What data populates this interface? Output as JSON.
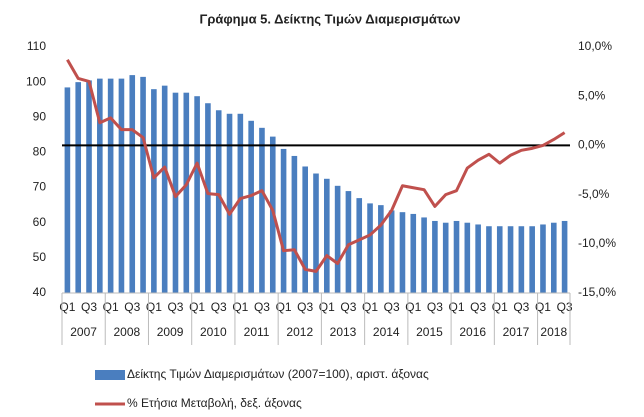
{
  "chart_data": {
    "type": "bar_line",
    "title": "Γράφημα 5. Δείκτης Τιμών Διαμερισμάτων",
    "categories": [
      "Q1",
      null,
      "Q3",
      null,
      "Q1",
      null,
      "Q3",
      null,
      "Q1",
      null,
      "Q3",
      null,
      "Q1",
      null,
      "Q3",
      null,
      "Q1",
      null,
      "Q3",
      null,
      "Q1",
      null,
      "Q3",
      null,
      "Q1",
      null,
      "Q3",
      null,
      "Q1",
      null,
      "Q3",
      null,
      "Q1",
      null,
      "Q3",
      null,
      "Q1",
      null,
      "Q3",
      null,
      "Q1",
      null,
      "Q3",
      null,
      "Q1",
      null,
      "Q3"
    ],
    "years": [
      "2007",
      "2008",
      "2009",
      "2010",
      "2011",
      "2012",
      "2013",
      "2014",
      "2015",
      "2016",
      "2017",
      "2018"
    ],
    "series": [
      {
        "name": "Δείκτης Τιμών Διαμερισμάτων (2007=100), αριστ. άξονας",
        "color": "#4a7ebf",
        "axis": "y",
        "values": [
          98.5,
          100,
          100.5,
          101,
          101,
          101,
          102,
          101.5,
          98,
          99,
          97,
          97,
          96,
          94,
          92,
          91,
          91,
          89,
          87,
          84.5,
          81,
          79,
          76,
          74,
          72.5,
          70.5,
          69,
          67,
          65.5,
          65,
          63.5,
          63,
          62.5,
          61.5,
          60.5,
          60,
          60.5,
          60,
          59.5,
          59,
          59,
          59,
          59,
          59,
          59.5,
          60,
          60.5
        ]
      },
      {
        "name": "% Ετήσια Μεταβολή, δεξ. άξονας",
        "color": "#c0504d",
        "axis": "y2",
        "values": [
          8.7,
          6.8,
          6.5,
          2.3,
          2.8,
          1.6,
          1.6,
          0.8,
          -3.3,
          -2.2,
          -5.2,
          -4.0,
          -1.8,
          -4.9,
          -5.0,
          -7.0,
          -5.4,
          -5.1,
          -4.6,
          -6.6,
          -10.7,
          -10.6,
          -12.6,
          -12.8,
          -11.2,
          -12.0,
          -10.1,
          -9.6,
          -9.1,
          -8.1,
          -6.6,
          -4.1,
          -4.3,
          -4.5,
          -6.2,
          -5.0,
          -4.6,
          -2.3,
          -1.5,
          -0.9,
          -1.8,
          -1.0,
          -0.5,
          -0.3,
          0.0,
          0.6,
          1.3
        ]
      }
    ],
    "ylim": [
      40,
      110
    ],
    "yticks": [
      40,
      50,
      60,
      70,
      80,
      90,
      100,
      110
    ],
    "y2lim": [
      -15,
      10
    ],
    "y2ticks": [
      {
        "value": -15,
        "label": "-15,0%"
      },
      {
        "value": -10,
        "label": "-10,0%"
      },
      {
        "value": -5,
        "label": "-5,0%"
      },
      {
        "value": 0,
        "label": "0,0%"
      },
      {
        "value": 5,
        "label": "5,0%"
      },
      {
        "value": 10,
        "label": "10,0%"
      }
    ],
    "y2_reference_line": 0,
    "legend": "bottom"
  }
}
